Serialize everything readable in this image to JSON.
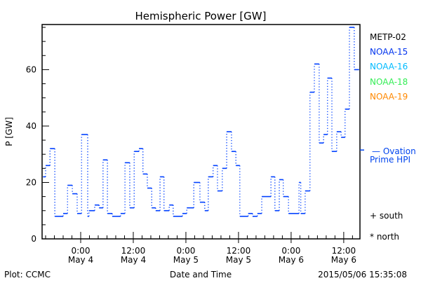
{
  "chart_data": {
    "type": "line",
    "title": "Hemispheric Power [GW]",
    "xlabel": "Date and Time",
    "ylabel": "P [GW]",
    "x_units": "hours since 2015-05-04 00:00",
    "xlim": [
      -8.8,
      63.7
    ],
    "ylim": [
      0,
      76
    ],
    "yticks": [
      0,
      20,
      40,
      60
    ],
    "xticks": [
      {
        "h": 0,
        "time": "0:00",
        "date": "May 4"
      },
      {
        "h": 12,
        "time": "12:00",
        "date": "May 4"
      },
      {
        "h": 24,
        "time": "0:00",
        "date": "May 5"
      },
      {
        "h": 36,
        "time": "12:00",
        "date": "May 5"
      },
      {
        "h": 48,
        "time": "0:00",
        "date": "May 6"
      },
      {
        "h": 60,
        "time": "12:00",
        "date": "May 6"
      }
    ],
    "series": [
      {
        "name": "NOAA-15",
        "style": "step",
        "color": "#0040ff",
        "x_start": [
          -8.6,
          -8.0,
          -7.0,
          -5.9,
          -4.0,
          -3.0,
          -1.9,
          -0.8,
          0.2,
          1.6,
          1.9,
          3.2,
          4.2,
          5.1,
          6.1,
          7.2,
          9.1,
          10.1,
          11.2,
          12.2,
          13.3,
          14.2,
          15.2,
          16.2,
          17.1,
          18.1,
          19.0,
          20.2,
          21.1,
          23.2,
          24.2,
          25.8,
          27.2,
          28.3,
          29.1,
          30.2,
          31.2,
          32.3,
          33.3,
          34.4,
          35.4,
          36.3,
          38.2,
          39.2,
          40.3,
          41.3,
          43.4,
          44.3,
          45.3,
          46.2,
          47.4,
          49.8,
          50.2,
          51.2,
          52.3,
          53.3,
          54.4,
          55.4,
          56.3,
          57.3,
          58.4,
          59.4,
          60.3,
          61.3,
          62.4
        ],
        "x_end": 63.5,
        "values": [
          22,
          26,
          32,
          8,
          9,
          19,
          16,
          9,
          37,
          8,
          10,
          12,
          11,
          28,
          9,
          8,
          9,
          27,
          11,
          31,
          32,
          23,
          18,
          11,
          10,
          22,
          10,
          12,
          8,
          9,
          11,
          20,
          13,
          10,
          22,
          26,
          17,
          25,
          38,
          31,
          26,
          8,
          9,
          8,
          9,
          15,
          22,
          10,
          21,
          15,
          9,
          20,
          9,
          17,
          52,
          62,
          34,
          37,
          57,
          31,
          38,
          36,
          46,
          75,
          60
        ]
      }
    ],
    "ovation_hpi": 31.5,
    "legend": {
      "placement": "right",
      "entries": [
        {
          "label": "METP-02",
          "color": "#000000"
        },
        {
          "label": "NOAA-15",
          "color": "#0033ee"
        },
        {
          "label": "NOAA-16",
          "color": "#00bbff"
        },
        {
          "label": "NOAA-18",
          "color": "#33ee55"
        },
        {
          "label": "NOAA-19",
          "color": "#ff8800"
        }
      ],
      "ovation_label_1": "— Ovation",
      "ovation_label_2": "Prime HPI",
      "ovation_color": "#0044ee",
      "south": "+ south",
      "north": "* north"
    },
    "footer": {
      "left": "Plot: CCMC",
      "right": "2015/05/06 15:35:08"
    }
  }
}
